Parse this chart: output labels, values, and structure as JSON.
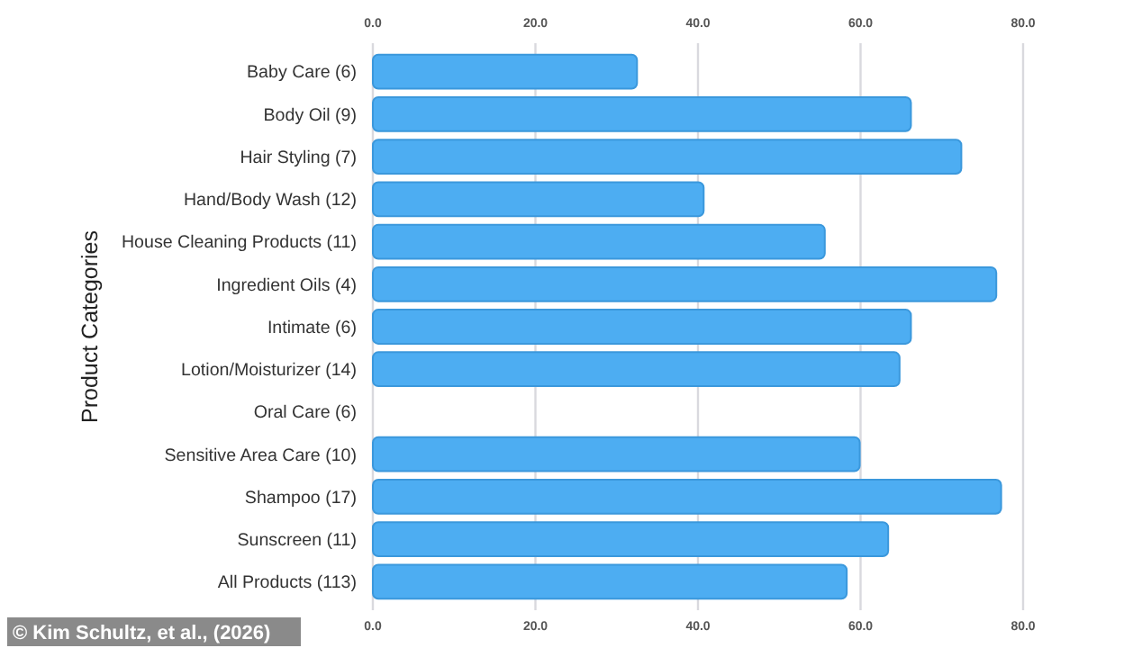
{
  "chart_data": {
    "type": "bar",
    "orientation": "horizontal",
    "ylabel": "Product Categories",
    "categories": [
      "Baby Care (6)",
      "Body Oil (9)",
      "Hair Styling (7)",
      "Hand/Body Wash (12)",
      "House Cleaning Products (11)",
      "Ingredient Oils (4)",
      "Intimate (6)",
      "Lotion/Moisturizer (14)",
      "Oral Care (6)",
      "Sensitive Area Care (10)",
      "Shampoo (17)",
      "Sunscreen (11)",
      "All Products (113)"
    ],
    "values": [
      32.5,
      66.2,
      72.4,
      40.7,
      55.6,
      76.7,
      66.2,
      64.8,
      null,
      59.9,
      77.3,
      63.4,
      58.3
    ],
    "color": "#4dadf2",
    "xlim": [
      0,
      80
    ],
    "xticks": [
      {
        "value": 0,
        "label": "0.0"
      },
      {
        "value": 20,
        "label": "20.0"
      },
      {
        "value": 40,
        "label": "40.0"
      },
      {
        "value": 60,
        "label": "60.0"
      },
      {
        "value": 80,
        "label": "80.0"
      }
    ],
    "grid": "x",
    "annotations": [
      "© Kim Schultz, et al., (2026)"
    ]
  }
}
